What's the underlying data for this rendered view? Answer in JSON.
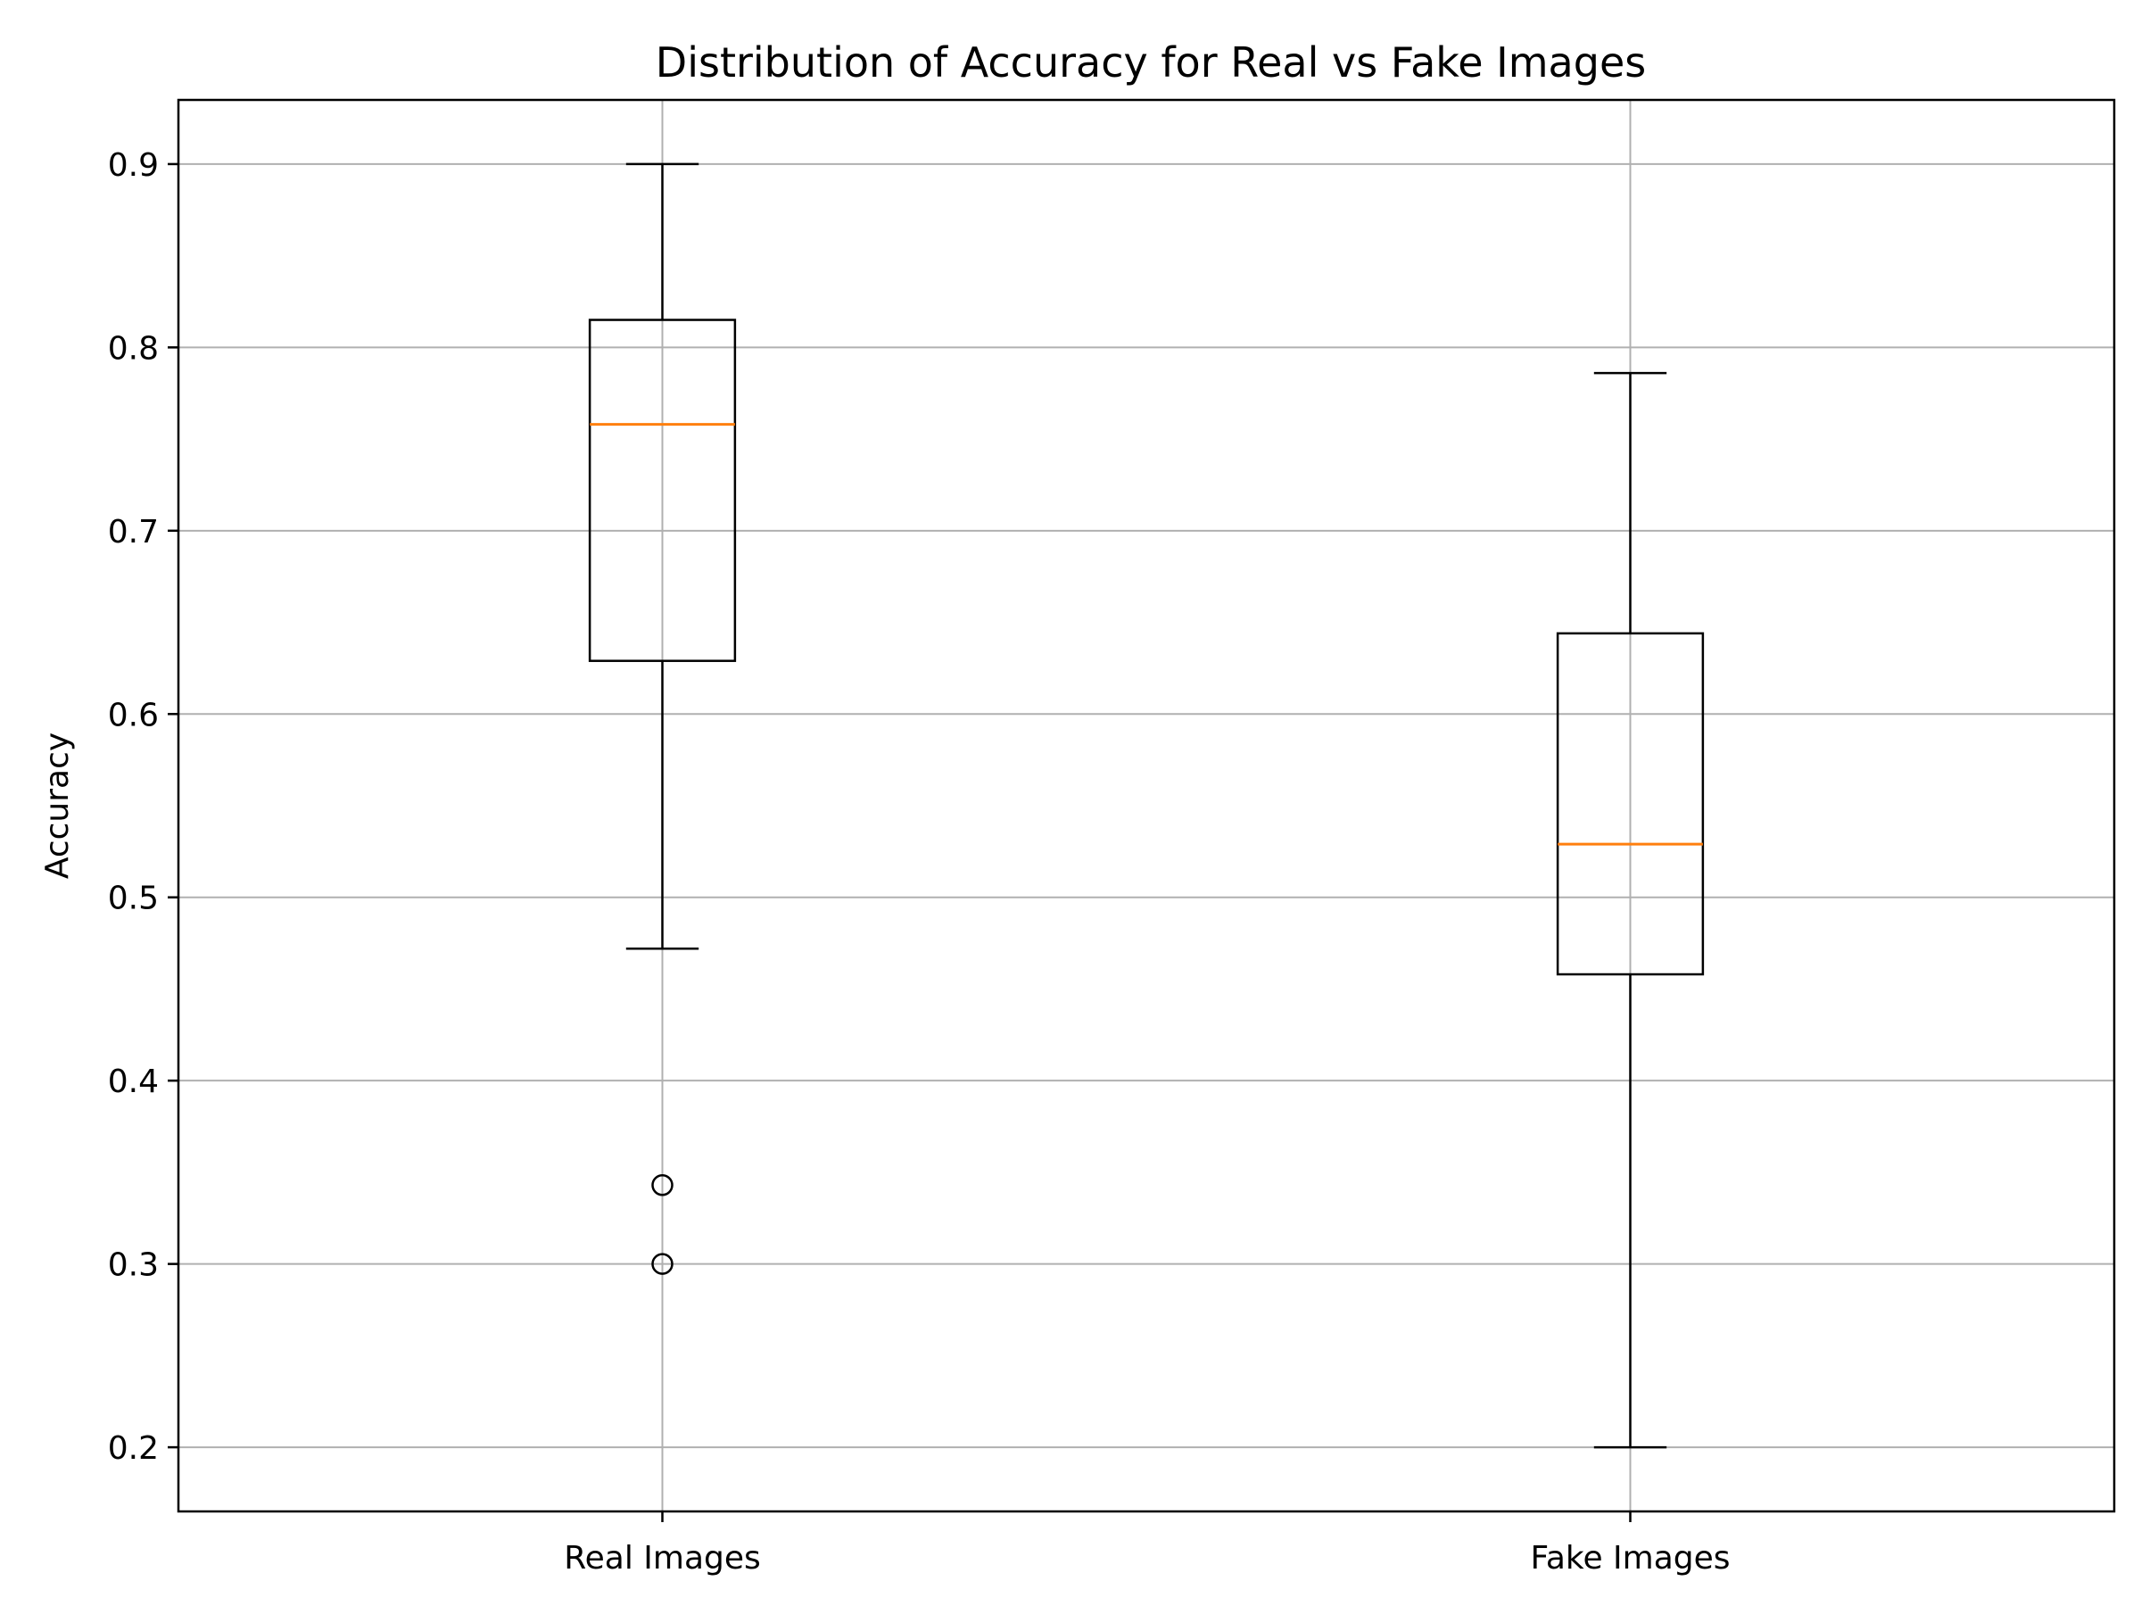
{
  "chart_data": {
    "type": "box",
    "title": "Distribution of Accuracy for Real vs Fake Images",
    "xlabel": "",
    "ylabel": "Accuracy",
    "ylim": [
      0.165,
      0.935
    ],
    "yticks": [
      0.2,
      0.3,
      0.4,
      0.5,
      0.6,
      0.7,
      0.8,
      0.9
    ],
    "ytick_labels": [
      "0.2",
      "0.3",
      "0.4",
      "0.5",
      "0.6",
      "0.7",
      "0.8",
      "0.9"
    ],
    "grid": true,
    "categories": [
      "Real Images",
      "Fake Images"
    ],
    "boxes": [
      {
        "whisker_low": 0.472,
        "q1": 0.629,
        "median": 0.758,
        "q3": 0.815,
        "whisker_high": 0.9,
        "outliers": [
          0.343,
          0.3
        ]
      },
      {
        "whisker_low": 0.2,
        "q1": 0.458,
        "median": 0.529,
        "q3": 0.644,
        "whisker_high": 0.786,
        "outliers": []
      }
    ],
    "colors": {
      "box": "#000000",
      "median": "#ff7f0e",
      "grid": "#b0b0b0"
    }
  }
}
